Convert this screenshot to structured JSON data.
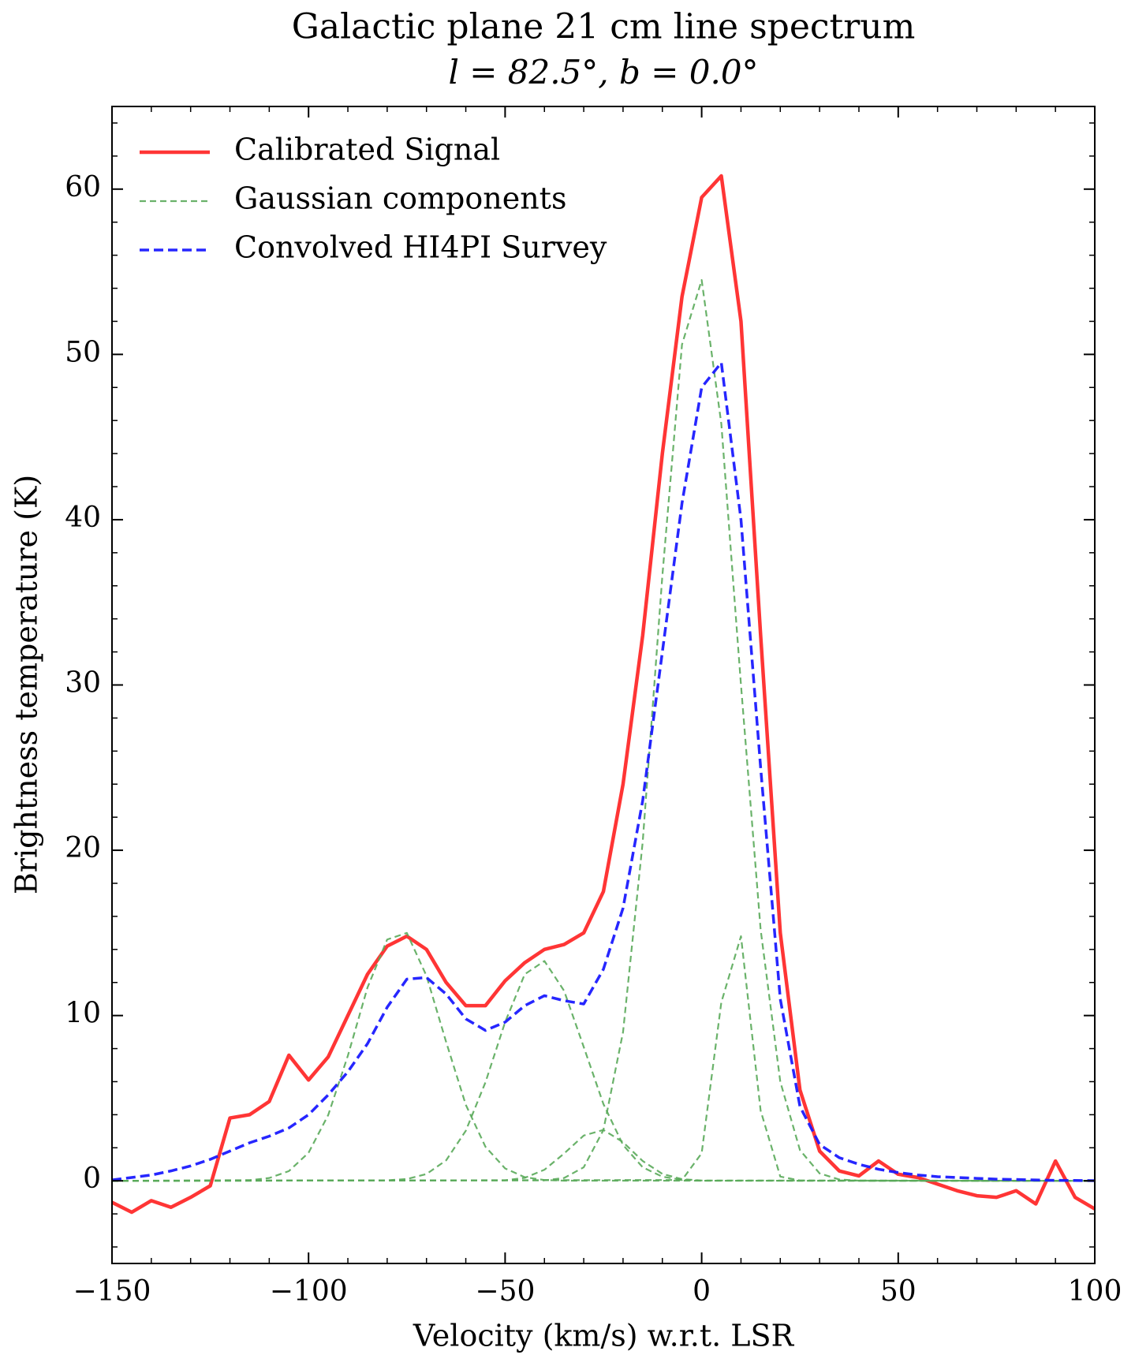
{
  "chart_data": {
    "type": "line",
    "title": "Galactic plane 21 cm line spectrum",
    "subtitle": "l = 82.5°, b = 0.0°",
    "x_label": "Velocity (km/s) w.r.t. LSR",
    "y_label": "Brightness temperature (K)",
    "xlim": [
      -150,
      100
    ],
    "ylim": [
      -5,
      65
    ],
    "xticks": [
      {
        "value": -150,
        "label": "−150"
      },
      {
        "value": -100,
        "label": "−100"
      },
      {
        "value": -50,
        "label": "−50"
      },
      0,
      50,
      100
    ],
    "yticks": [
      0,
      10,
      20,
      30,
      40,
      50,
      60
    ],
    "minor_xticks": [
      -140,
      -130,
      -120,
      -110,
      -90,
      -80,
      -70,
      -60,
      -40,
      -30,
      -20,
      -10,
      10,
      20,
      30,
      40,
      60,
      70,
      80,
      90
    ],
    "minor_yticks": [
      -4,
      -2,
      2,
      4,
      6,
      8,
      12,
      14,
      16,
      18,
      22,
      24,
      26,
      28,
      32,
      34,
      36,
      38,
      42,
      44,
      46,
      48,
      52,
      54,
      56,
      58,
      62,
      64
    ],
    "legend": "upper left",
    "x": [
      -150,
      -145,
      -140,
      -135,
      -130,
      -125,
      -120,
      -115,
      -110,
      -105,
      -100,
      -95,
      -90,
      -85,
      -80,
      -75,
      -70,
      -65,
      -60,
      -55,
      -50,
      -45,
      -40,
      -35,
      -30,
      -25,
      -20,
      -15,
      -10,
      -5,
      0,
      5,
      10,
      15,
      20,
      25,
      30,
      35,
      40,
      45,
      50,
      55,
      60,
      65,
      70,
      75,
      80,
      85,
      90,
      95,
      100
    ],
    "series": [
      {
        "name": "Calibrated Signal",
        "color": "#ff2a2a",
        "style": "solid",
        "values": [
          -1.3,
          -1.9,
          -1.2,
          -1.6,
          -1.0,
          -0.3,
          3.8,
          4.0,
          4.8,
          7.6,
          6.1,
          7.5,
          10.0,
          12.5,
          14.2,
          14.8,
          14.0,
          12.0,
          10.6,
          10.6,
          12.1,
          13.2,
          14.0,
          14.3,
          15.0,
          17.5,
          24.0,
          33,
          44,
          53.5,
          59.5,
          60.8,
          52,
          33,
          15,
          5.5,
          1.8,
          0.6,
          0.3,
          1.2,
          0.4,
          0.2,
          -0.2,
          -0.6,
          -0.9,
          -1.0,
          -0.6,
          -1.4,
          1.2,
          -1.0,
          -1.7
        ]
      },
      {
        "name": "Gaussian components",
        "color": "#5aaa5a",
        "style": "thin-dash",
        "components": [
          {
            "x": [
              -150,
              -115,
              -110,
              -105,
              -100,
              -95,
              -90,
              -85,
              -80,
              -75,
              -70,
              -65,
              -60,
              -55,
              -50,
              -45,
              -40,
              -35,
              100
            ],
            "values": [
              0,
              0.04,
              0.17,
              0.59,
              1.7,
              3.98,
              7.57,
              11.7,
              14.6,
              15.0,
              12.4,
              8.4,
              4.6,
              2.06,
              0.75,
              0.22,
              0.05,
              0.01,
              0
            ]
          },
          {
            "x": [
              -150,
              -80,
              -75,
              -70,
              -65,
              -60,
              -55,
              -50,
              -45,
              -40,
              -35,
              -30,
              -25,
              -20,
              -15,
              -10,
              -5,
              0,
              100
            ],
            "values": [
              0,
              0.03,
              0.11,
              0.41,
              1.24,
              3.03,
              5.96,
              9.6,
              12.5,
              13.3,
              11.5,
              8.1,
              4.65,
              2.17,
              0.82,
              0.25,
              0.06,
              0.01,
              0
            ]
          },
          {
            "x": [
              -150,
              -50,
              -45,
              -40,
              -35,
              -30,
              -25,
              -20,
              -15,
              -10,
              -5,
              0,
              100
            ],
            "values": [
              0,
              0.03,
              0.18,
              0.67,
              1.65,
              2.74,
              3.08,
              2.34,
              1.2,
              0.42,
              0.1,
              0.02,
              0
            ]
          },
          {
            "x": [
              -150,
              -40,
              -35,
              -30,
              -25,
              -20,
              -15,
              -10,
              -5,
              0,
              5,
              10,
              15,
              20,
              25,
              30,
              35,
              40,
              100
            ],
            "values": [
              0,
              0.03,
              0.17,
              0.82,
              3.07,
              9.0,
              20.5,
              36.6,
              50.6,
              54.5,
              45.8,
              30.0,
              15.2,
              6.0,
              1.86,
              0.45,
              0.08,
              0.01,
              0
            ]
          },
          {
            "x": [
              -150,
              -5,
              0,
              5,
              10,
              15,
              20,
              25,
              100
            ],
            "values": [
              0,
              0.05,
              1.67,
              10.8,
              14.8,
              4.25,
              0.26,
              0.02,
              0
            ]
          }
        ]
      },
      {
        "name": "Convolved HI4PI Survey",
        "color": "#1a1aff",
        "style": "dash",
        "values": [
          0.05,
          0.2,
          0.35,
          0.6,
          0.9,
          1.3,
          1.8,
          2.3,
          2.7,
          3.2,
          4.0,
          5.2,
          6.6,
          8.3,
          10.5,
          12.2,
          12.3,
          11.3,
          9.8,
          9.1,
          9.6,
          10.6,
          11.2,
          10.9,
          10.7,
          12.8,
          16.5,
          23,
          32,
          41,
          48,
          49.5,
          40,
          25,
          11,
          4.5,
          2.2,
          1.4,
          1.0,
          0.7,
          0.5,
          0.35,
          0.25,
          0.2,
          0.15,
          0.1,
          0.08,
          0.05,
          0.03,
          0.02,
          0.01
        ]
      }
    ]
  }
}
